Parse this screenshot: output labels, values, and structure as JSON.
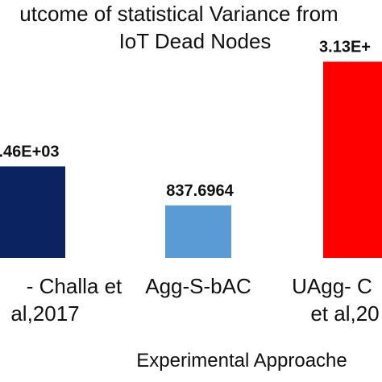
{
  "chart_data": {
    "type": "bar",
    "title_lines": [
      "utcome of statistical Variance from",
      "IoT Dead Nodes"
    ],
    "categories": [
      [
        "- Challa et",
        "al,2017"
      ],
      [
        "Agg-S-bAC"
      ],
      [
        "UAgg- C",
        "et al,20"
      ]
    ],
    "values": [
      1460,
      837.6964,
      3130
    ],
    "data_labels": [
      ".46E+03",
      "837.6964",
      "3.13E+"
    ],
    "colors": [
      "#0b2461",
      "#5b9bd5",
      "#ff0000"
    ],
    "xlabel": "Experimental Approache",
    "ylabel": "",
    "ylim": [
      0,
      3600
    ],
    "grid": false,
    "legend": "none"
  }
}
